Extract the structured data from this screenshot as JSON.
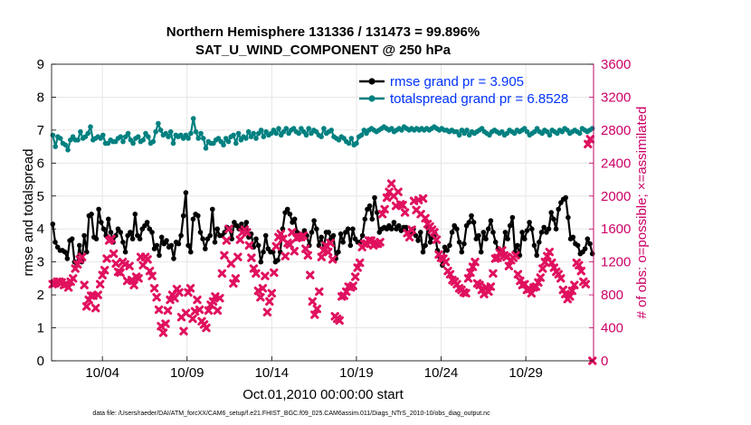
{
  "chart_data": {
    "type": "line",
    "title_line1": "Northern Hemisphere 131336 / 131473 = 99.896%",
    "title_line2": "SAT_U_WIND_COMPONENT @ 250 hPa",
    "xlabel": "Oct.01,2010 00:00:00 start",
    "ylabel_left": "rmse and totalspread",
    "ylabel_right": "# of obs: o=possible; ×=assimilated",
    "footer": "data file: /Users/raeder/DAI/ATM_forcXX/CAM6_setup/f.e21.FHIST_BGC.f09_025.CAM6assim.011/Diags_NTrS_2010-10/obs_diag_output.nc",
    "xlim": [
      1,
      33
    ],
    "ylim_left": [
      0,
      9
    ],
    "ylim_right": [
      0,
      3600
    ],
    "x_ticks": [
      4,
      9,
      14,
      19,
      24,
      29
    ],
    "x_tick_labels": [
      "10/04",
      "10/09",
      "10/14",
      "10/19",
      "10/24",
      "10/29"
    ],
    "y_left_ticks": [
      "0",
      "1",
      "2",
      "3",
      "4",
      "5",
      "6",
      "7",
      "8",
      "9"
    ],
    "y_right_ticks": [
      "0",
      "400",
      "800",
      "1200",
      "1600",
      "2000",
      "2400",
      "2800",
      "3200",
      "3600"
    ],
    "grid": true,
    "legend_position": "top-right",
    "colors": {
      "rmse": "#000000",
      "totalspread": "#008080",
      "obs": "#e0115f",
      "right_axis": "#cc0066",
      "legend_text": "#0033ff",
      "grid": "#e6e6e6"
    },
    "series": [
      {
        "name": "rmse grand pr = 3.905",
        "axis": "left",
        "values": [
          4.15,
          3.6,
          3.45,
          3.35,
          3.35,
          3.3,
          3.1,
          3.65,
          3.7,
          3.0,
          2.9,
          3.5,
          3.0,
          3.8,
          3.3,
          4.4,
          4.45,
          3.75,
          3.7,
          4.6,
          4.2,
          4.0,
          3.8,
          4.3,
          3.9,
          3.6,
          3.8,
          4.0,
          3.9,
          3.6,
          3.3,
          3.8,
          3.9,
          3.7,
          4.45,
          3.8,
          3.7,
          4.0,
          4.1,
          4.2,
          4.0,
          3.9,
          3.4,
          3.5,
          3.2,
          3.75,
          3.55,
          3.65,
          3.45,
          3.5,
          3.1,
          3.6,
          3.55,
          3.8,
          4.4,
          5.1,
          3.5,
          3.3,
          4.3,
          4.45,
          4.4,
          3.9,
          3.7,
          3.4,
          3.7,
          3.8,
          4.6,
          3.6,
          4.0,
          3.8,
          3.8,
          3.9,
          4.05,
          4.0,
          3.7,
          4.2,
          4.1,
          4.0,
          4.15,
          4.0,
          4.2,
          3.75,
          3.85,
          3.45,
          3.7,
          3.5,
          3.0,
          3.3,
          3.8,
          3.4,
          3.3,
          3.3,
          3.0,
          3.05,
          3.3,
          4.0,
          4.5,
          4.6,
          4.45,
          4.2,
          4.3,
          3.9,
          3.7,
          3.8,
          3.95,
          3.8,
          3.5,
          3.9,
          4.25,
          4.0,
          3.5,
          3.75,
          3.4,
          3.9,
          3.9,
          3.7,
          3.8,
          3.1,
          3.3,
          3.85,
          3.6,
          3.9,
          4.0,
          3.5,
          4.0,
          3.7,
          3.6,
          3.6,
          3.8,
          4.3,
          4.6,
          4.7,
          4.3,
          4.95,
          4.5,
          3.9,
          4.0,
          4.05,
          4.0,
          4.1,
          4.0,
          4.2,
          4.0,
          4.1,
          3.95,
          4.05,
          4.05,
          3.85,
          3.9,
          4.0,
          3.8,
          3.65,
          3.9,
          3.3,
          3.5,
          4.05,
          3.6,
          3.75,
          3.85,
          3.35,
          3.15,
          2.9,
          3.45,
          3.35,
          3.5,
          3.9,
          4.1,
          4.0,
          3.6,
          3.3,
          3.55,
          4.1,
          4.2,
          4.4,
          4.2,
          3.7,
          3.8,
          3.3,
          3.9,
          3.7,
          4.0,
          4.25,
          3.9,
          3.6,
          3.4,
          3.25,
          3.3,
          3.9,
          3.7,
          4.1,
          4.35,
          3.3,
          3.5,
          3.2,
          3.9,
          3.7,
          3.95,
          4.2,
          4.0,
          3.5,
          3.2,
          3.6,
          3.9,
          4.05,
          3.9,
          4.0,
          4.5,
          4.3,
          4.0,
          4.6,
          4.8,
          4.9,
          4.95,
          4.35,
          3.7,
          3.75,
          3.55,
          3.5,
          3.25,
          3.3,
          3.4,
          3.7,
          3.55,
          3.25
        ]
      },
      {
        "name": "totalspread grand pr = 6.8528",
        "axis": "left",
        "values": [
          6.85,
          6.5,
          6.8,
          6.75,
          6.6,
          6.55,
          6.4,
          6.7,
          6.8,
          6.7,
          6.7,
          6.95,
          6.75,
          6.8,
          6.9,
          7.1,
          6.7,
          6.75,
          6.8,
          6.75,
          6.85,
          6.6,
          6.6,
          6.7,
          6.65,
          6.65,
          6.75,
          6.8,
          6.65,
          6.8,
          6.9,
          6.7,
          6.6,
          6.75,
          6.8,
          6.65,
          6.7,
          6.9,
          6.8,
          6.6,
          6.65,
          6.95,
          7.2,
          7.0,
          6.85,
          6.9,
          6.8,
          6.95,
          6.6,
          6.85,
          6.8,
          6.85,
          6.75,
          6.85,
          6.75,
          6.9,
          7.35,
          6.95,
          6.75,
          6.9,
          6.75,
          6.45,
          6.65,
          6.6,
          6.6,
          6.7,
          6.75,
          6.65,
          6.55,
          6.75,
          6.65,
          6.8,
          6.85,
          6.6,
          6.9,
          6.7,
          6.8,
          6.75,
          6.95,
          6.8,
          6.9,
          6.75,
          6.9,
          7.0,
          6.8,
          6.95,
          6.85,
          6.9,
          7.0,
          6.9,
          7.05,
          6.85,
          6.95,
          7.05,
          6.9,
          7.0,
          7.05,
          6.95,
          6.9,
          7.05,
          6.95,
          6.85,
          7.05,
          6.9,
          7.0,
          6.95,
          6.85,
          6.8,
          7.05,
          6.9,
          6.95,
          7.0,
          6.8,
          6.75,
          6.7,
          6.8,
          6.75,
          6.65,
          6.6,
          6.75,
          6.55,
          6.6,
          6.8,
          6.85,
          7.0,
          6.9,
          7.0,
          7.05,
          7.0,
          6.95,
          7.0,
          7.05,
          7.1,
          7.05,
          7.0,
          7.05,
          6.95,
          7.0,
          7.05,
          7.0,
          7.1,
          7.05,
          7.0,
          7.05,
          7.0,
          7.05,
          7.0,
          7.05,
          7.0,
          7.05,
          7.0,
          7.05,
          7.1,
          7.05,
          7.0,
          7.05,
          7.0,
          7.0,
          6.95,
          7.0,
          6.95,
          6.95,
          6.85,
          7.0,
          6.9,
          7.0,
          6.85,
          6.95,
          6.9,
          6.95,
          7.0,
          7.05,
          6.95,
          6.9,
          6.85,
          6.95,
          7.0,
          6.95,
          6.9,
          6.95,
          6.85,
          6.9,
          7.0,
          6.95,
          6.9,
          7.0,
          6.95,
          7.0,
          7.05,
          6.95,
          6.85,
          6.9,
          6.95,
          7.05,
          6.95,
          6.9,
          7.0,
          6.95,
          6.85,
          7.0,
          6.95,
          6.9,
          7.0,
          6.95,
          7.05,
          7.0,
          6.9,
          6.95,
          7.0,
          6.95,
          6.9,
          7.05,
          7.0,
          6.95,
          7.0,
          7.05
        ]
      },
      {
        "name": "",
        "axis": "right",
        "marker": "x",
        "values": [
          930,
          940,
          960,
          960,
          950,
          920,
          930,
          890,
          960,
          1000,
          1120,
          1170,
          1230,
          1260,
          920,
          660,
          740,
          790,
          790,
          640,
          800,
          930,
          1040,
          1100,
          1240,
          1460,
          1480,
          1300,
          1180,
          1080,
          1070,
          1200,
          1170,
          970,
          1150,
          980,
          920,
          1020,
          1000,
          1260,
          1160,
          1260,
          1230,
          1090,
          1030,
          880,
          770,
          620,
          420,
          340,
          450,
          610,
          740,
          800,
          760,
          870,
          830,
          530,
          360,
          580,
          830,
          880,
          510,
          600,
          740,
          620,
          480,
          440,
          400,
          610,
          680,
          720,
          780,
          610,
          760,
          1060,
          1280,
          1460,
          1600,
          1180,
          940,
          1000,
          1260,
          1470,
          1560,
          1590,
          1560,
          1400,
          1250,
          1120,
          1060,
          850,
          770,
          880,
          1030,
          590,
          720,
          820,
          1070,
          1390,
          1500,
          1540,
          1480,
          1270,
          1430,
          1410,
          1560,
          1330,
          1490,
          1500,
          1500,
          1520,
          1360,
          1280,
          1040,
          720,
          560,
          630,
          840,
          1260,
          1340,
          1400,
          1320,
          1430,
          1230,
          540,
          510,
          490,
          780,
          790,
          840,
          900,
          890,
          910,
          1020,
          1130,
          1190,
          1380,
          1420,
          1420,
          1460,
          1460,
          1400,
          1420,
          1420,
          1440,
          1780,
          1840,
          1980,
          2050,
          2150,
          2000,
          1880,
          2050,
          1900,
          1890,
          1800,
          1550,
          1500,
          1590,
          1940,
          1830,
          1950,
          1780,
          1970,
          1730,
          1660,
          1630,
          1590,
          1560,
          1470,
          1290,
          1250,
          1240,
          1200,
          1090,
          1050,
          980,
          960,
          930,
          880,
          860,
          830,
          820,
          1000,
          1070,
          1140,
          1200,
          940,
          920,
          860,
          810,
          890,
          840,
          900,
          1060,
          1240,
          1250,
          1310,
          1340,
          1280,
          1260,
          1150,
          1220,
          1250,
          1280,
          1050,
          970,
          920,
          930,
          860,
          870,
          820,
          890,
          900,
          950,
          1010,
          1120,
          1200,
          1270,
          1320,
          1190,
          1130,
          1080,
          1050,
          1000,
          860,
          810,
          750,
          780,
          850,
          920,
          1190,
          1160,
          1090,
          960,
          930,
          2630,
          2690,
          0
        ]
      }
    ]
  }
}
